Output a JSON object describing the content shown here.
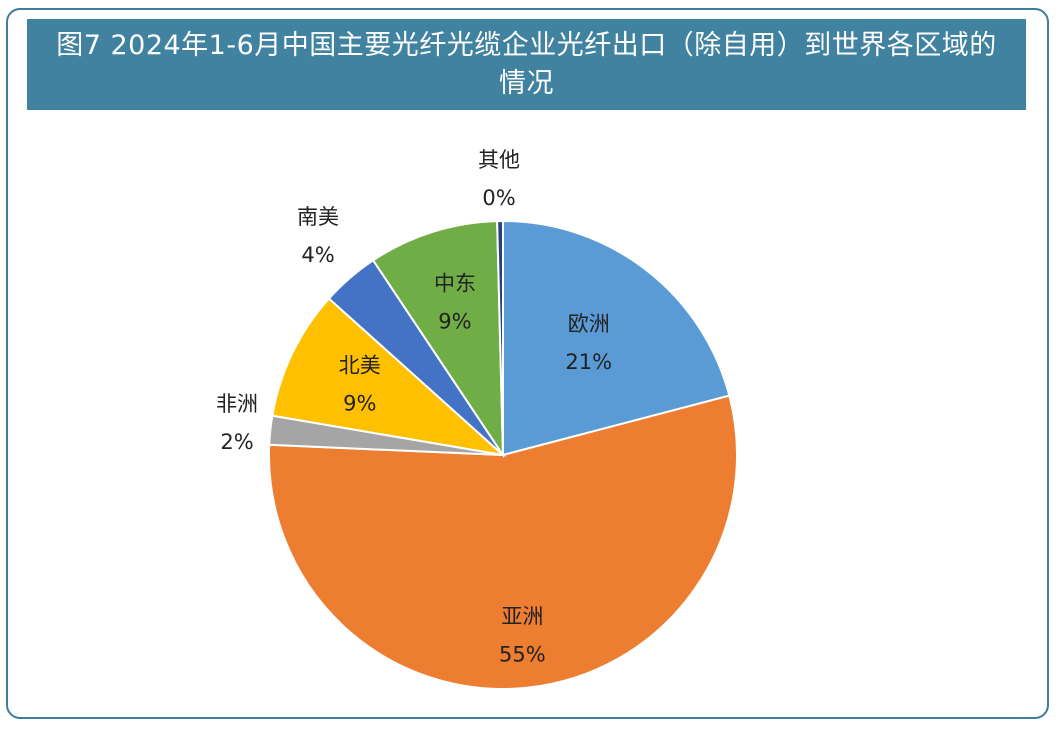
{
  "chart_data": {
    "type": "pie",
    "title": "图7 2024年1-6月中国主要光纤光缆企业光纤出口（除自用）到世界各区域的情况",
    "slices": [
      {
        "name": "欧洲",
        "value": 21,
        "label": "21%",
        "color": "#5b9bd5"
      },
      {
        "name": "亚洲",
        "value": 55,
        "label": "55%",
        "color": "#ed7d31"
      },
      {
        "name": "非洲",
        "value": 2,
        "label": "2%",
        "color": "#a5a5a5"
      },
      {
        "name": "北美",
        "value": 9,
        "label": "9%",
        "color": "#ffc000"
      },
      {
        "name": "南美",
        "value": 4,
        "label": "4%",
        "color": "#4472c4"
      },
      {
        "name": "中东",
        "value": 9,
        "label": "9%",
        "color": "#70ad47"
      },
      {
        "name": "其他",
        "value": 0.4,
        "label": "0%",
        "color": "#264478"
      }
    ]
  }
}
